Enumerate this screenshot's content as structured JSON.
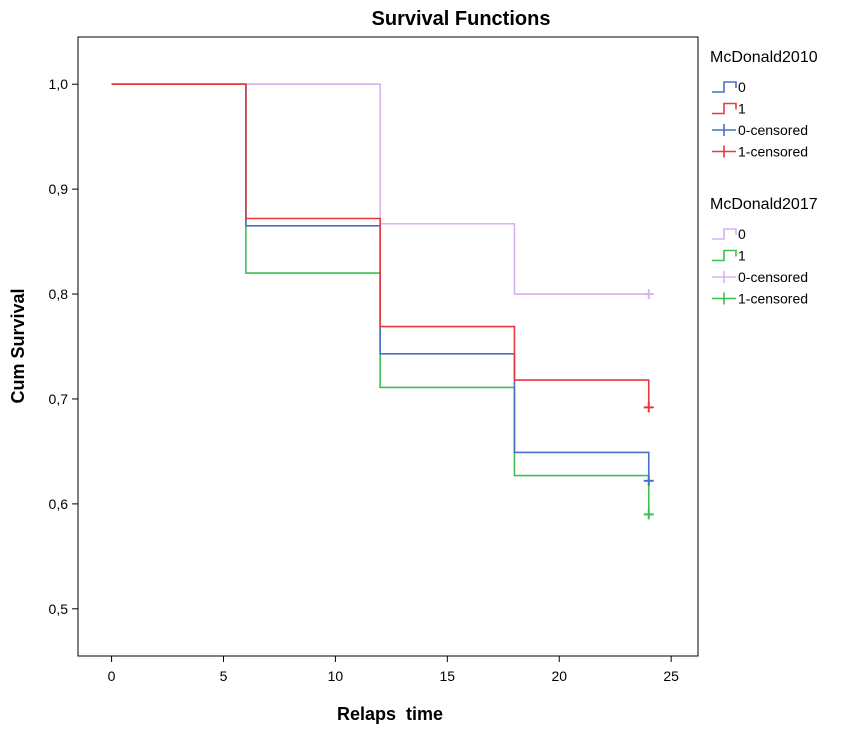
{
  "chart_data": {
    "type": "line",
    "subtype": "kaplan-meier step",
    "title": "Survival Functions",
    "xlabel": "Relaps  time",
    "ylabel": "Cum Survival",
    "xlim": [
      -1.5,
      26.2
    ],
    "ylim": [
      0.455,
      1.045
    ],
    "x_ticks": [
      0,
      5,
      10,
      15,
      20,
      25
    ],
    "x_tick_labels": [
      "0",
      "5",
      "10",
      "15",
      "20",
      "25"
    ],
    "y_ticks": [
      0.5,
      0.6,
      0.7,
      0.8,
      0.9,
      1.0
    ],
    "y_tick_labels": [
      "0,5",
      "0,6",
      "0,7",
      "0,8",
      "0,9",
      "1,0"
    ],
    "grid": false,
    "legend_position": "right",
    "legend_groups": [
      {
        "title": "McDonald2010",
        "entries": [
          {
            "label": "0",
            "kind": "step",
            "color": "#4a6fc7"
          },
          {
            "label": "1",
            "kind": "step",
            "color": "#e8393f"
          },
          {
            "label": "0-censored",
            "kind": "censor",
            "color": "#4a6fc7"
          },
          {
            "label": "1-censored",
            "kind": "censor",
            "color": "#e8393f"
          }
        ]
      },
      {
        "title": "McDonald2017",
        "entries": [
          {
            "label": "0",
            "kind": "step",
            "color": "#d7b3ee"
          },
          {
            "label": "1",
            "kind": "step",
            "color": "#3cc052"
          },
          {
            "label": "0-censored",
            "kind": "censor",
            "color": "#d7b3ee"
          },
          {
            "label": "1-censored",
            "kind": "censor",
            "color": "#3cc052"
          }
        ]
      }
    ],
    "series": [
      {
        "group": "McDonald2017",
        "name": "0",
        "color": "#d7b3ee",
        "steps": [
          [
            0,
            1.0
          ],
          [
            12,
            0.867
          ],
          [
            18,
            0.8
          ],
          [
            24,
            0.8
          ]
        ],
        "censored": [
          [
            24,
            0.8
          ]
        ]
      },
      {
        "group": "McDonald2017",
        "name": "1",
        "color": "#3cc052",
        "steps": [
          [
            0,
            1.0
          ],
          [
            6,
            0.82
          ],
          [
            12,
            0.711
          ],
          [
            18,
            0.627
          ],
          [
            24,
            0.59
          ]
        ],
        "censored": [
          [
            24,
            0.59
          ]
        ]
      },
      {
        "group": "McDonald2010",
        "name": "0",
        "color": "#4a6fc7",
        "steps": [
          [
            0,
            1.0
          ],
          [
            6,
            0.865
          ],
          [
            12,
            0.743
          ],
          [
            18,
            0.649
          ],
          [
            24,
            0.622
          ]
        ],
        "censored": [
          [
            24,
            0.622
          ]
        ]
      },
      {
        "group": "McDonald2010",
        "name": "1",
        "color": "#e8393f",
        "steps": [
          [
            0,
            1.0
          ],
          [
            6,
            0.872
          ],
          [
            12,
            0.769
          ],
          [
            18,
            0.718
          ],
          [
            24,
            0.692
          ]
        ],
        "censored": [
          [
            24,
            0.692
          ]
        ]
      }
    ]
  }
}
